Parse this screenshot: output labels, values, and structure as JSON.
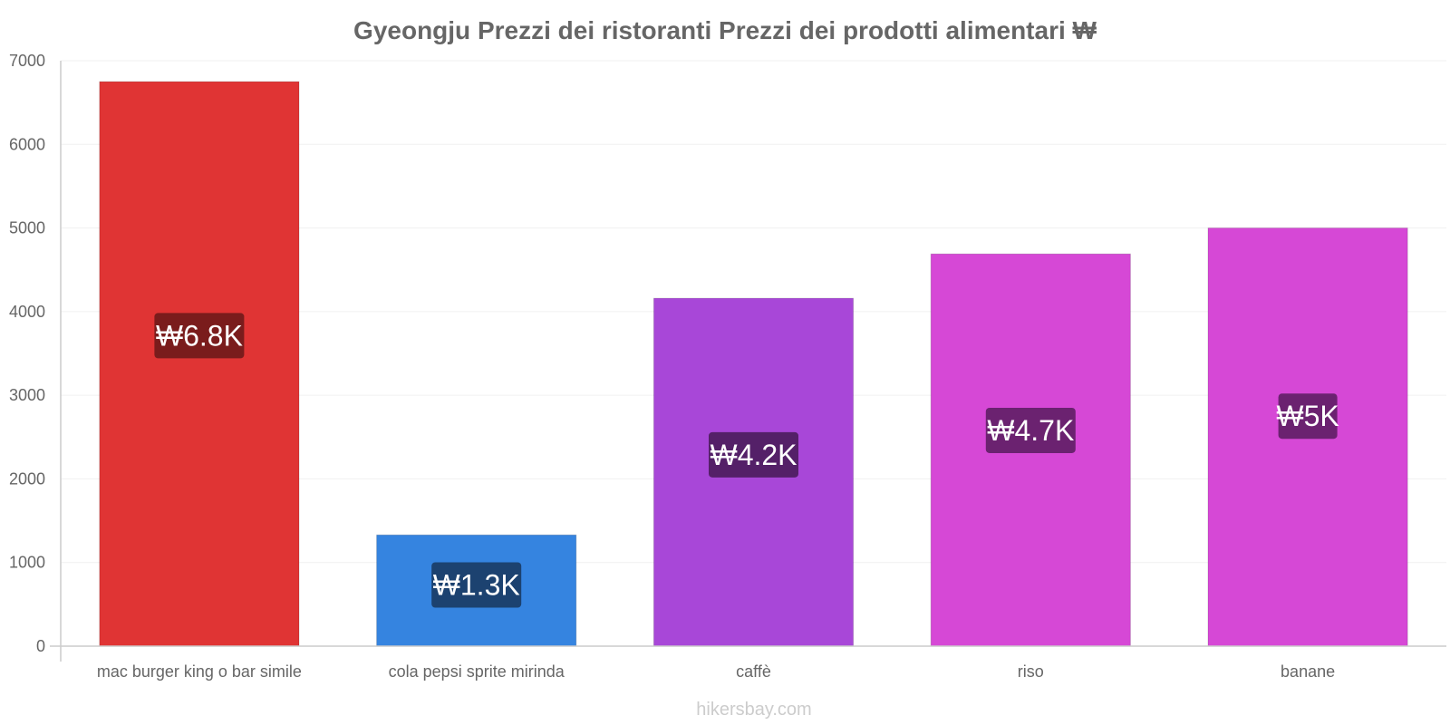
{
  "chart_data": {
    "type": "bar",
    "title": "Gyeongju Prezzi dei ristoranti Prezzi dei prodotti alimentari ₩",
    "xlabel": "",
    "ylabel": "",
    "ylim": [
      0,
      7000
    ],
    "yticks": [
      0,
      1000,
      2000,
      3000,
      4000,
      5000,
      6000,
      7000
    ],
    "grid": true,
    "categories": [
      "mac burger king o bar simile",
      "cola pepsi sprite mirinda",
      "caffè",
      "riso",
      "banane"
    ],
    "values": [
      6750,
      1330,
      4160,
      4690,
      5000
    ],
    "data_labels": [
      "₩6.8K",
      "₩1.3K",
      "₩4.2K",
      "₩4.7K",
      "₩5K"
    ],
    "colors": [
      "#e03434",
      "#3584e0",
      "#a847d8",
      "#d648d6",
      "#d648d6"
    ],
    "label_bg_colors": [
      "#7a1c1c",
      "#1c4270",
      "#542068",
      "#6b2270",
      "#6b2270"
    ]
  },
  "watermark": "hikersbay.com"
}
